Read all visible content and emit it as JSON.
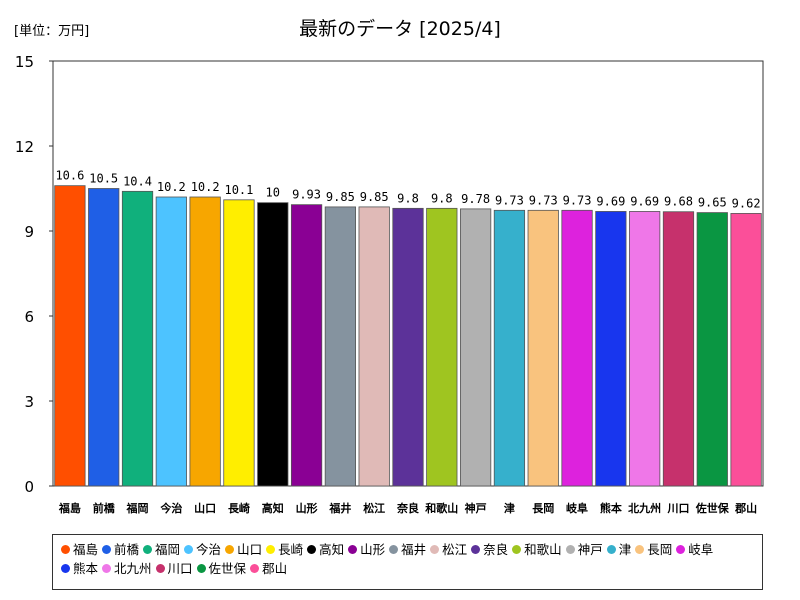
{
  "unit_label": "[単位：万円]",
  "chart_data": {
    "type": "bar",
    "title": "最新のデータ [2025/4]",
    "ylim": [
      0,
      15
    ],
    "yticks": [
      0,
      3,
      6,
      9,
      12,
      15
    ],
    "categories": [
      "福島",
      "前橋",
      "福岡",
      "今治",
      "山口",
      "長崎",
      "高知",
      "山形",
      "福井",
      "松江",
      "奈良",
      "和歌山",
      "神戸",
      "津",
      "長岡",
      "岐阜",
      "熊本",
      "北九州",
      "川口",
      "佐世保",
      "郡山"
    ],
    "values": [
      10.6,
      10.5,
      10.4,
      10.2,
      10.2,
      10.1,
      10,
      9.93,
      9.85,
      9.85,
      9.8,
      9.8,
      9.78,
      9.73,
      9.73,
      9.73,
      9.69,
      9.69,
      9.68,
      9.65,
      9.62
    ],
    "value_labels": [
      "10.6",
      "10.5",
      "10.4",
      "10.2",
      "10.2",
      "10.1",
      "10",
      "9.93",
      "9.85",
      "9.85",
      "9.8",
      "9.8",
      "9.78",
      "9.73",
      "9.73",
      "9.73",
      "9.69",
      "9.69",
      "9.68",
      "9.65",
      "9.62"
    ],
    "colors": [
      "#ff4f00",
      "#1f5fe6",
      "#10b07c",
      "#4dc3ff",
      "#f7a600",
      "#ffee00",
      "#000000",
      "#8a0094",
      "#85939f",
      "#e0bab7",
      "#5c3299",
      "#9fc520",
      "#b1b1b1",
      "#36b0cc",
      "#f9c37e",
      "#dd22dd",
      "#1836ee",
      "#ef77e8",
      "#c6316c",
      "#0a9642",
      "#fb4f99"
    ],
    "legend": [
      "福島",
      "前橋",
      "福岡",
      "今治",
      "山口",
      "長崎",
      "高知",
      "山形",
      "福井",
      "松江",
      "奈良",
      "和歌山",
      "神戸",
      "津",
      "長岡",
      "岐阜",
      "熊本",
      "北九州",
      "川口",
      "佐世保",
      "郡山"
    ]
  }
}
